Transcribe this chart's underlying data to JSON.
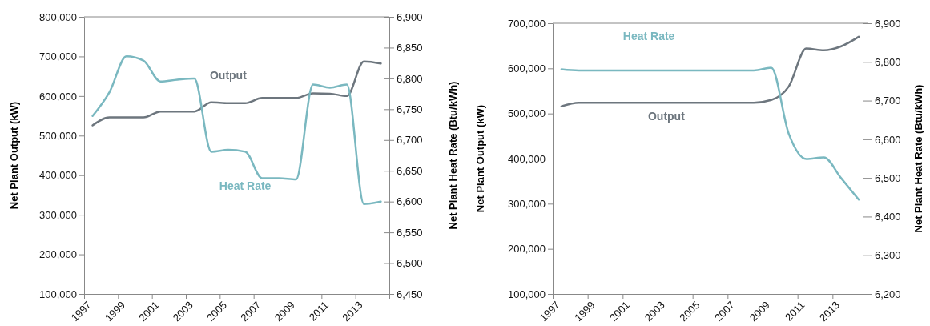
{
  "chart_data": [
    {
      "type": "line",
      "ylabel": "Net Plant Output (kW)",
      "y2label": "Net Plant Heat Rate (Btu/kWh)",
      "xlim": [
        1997,
        2015
      ],
      "xticks": [
        1997,
        1999,
        2001,
        2003,
        2005,
        2007,
        2009,
        2011,
        2013
      ],
      "ylim": [
        100000,
        800000
      ],
      "yticks": [
        {
          "value": 100000,
          "label": "100,000"
        },
        {
          "value": 200000,
          "label": "200,000"
        },
        {
          "value": 300000,
          "label": "300,000"
        },
        {
          "value": 400000,
          "label": "400,000"
        },
        {
          "value": 500000,
          "label": "500,000"
        },
        {
          "value": 600000,
          "label": "600,000"
        },
        {
          "value": 700000,
          "label": "700,000"
        },
        {
          "value": 800000,
          "label": "800,000"
        }
      ],
      "y2lim": [
        6450,
        6900
      ],
      "y2ticks": [
        {
          "value": 6450,
          "label": "6,450"
        },
        {
          "value": 6500,
          "label": "6,500"
        },
        {
          "value": 6550,
          "label": "6,550"
        },
        {
          "value": 6600,
          "label": "6,600"
        },
        {
          "value": 6650,
          "label": "6,650"
        },
        {
          "value": 6700,
          "label": "6,700"
        },
        {
          "value": 6750,
          "label": "6,750"
        },
        {
          "value": 6800,
          "label": "6,800"
        },
        {
          "value": 6850,
          "label": "6,850"
        },
        {
          "value": 6900,
          "label": "6,900"
        }
      ],
      "x": [
        1997.5,
        1998.5,
        1999.5,
        2000.5,
        2001.5,
        2002.5,
        2003.5,
        2004.5,
        2005.5,
        2006.5,
        2007.5,
        2008.5,
        2009.5,
        2010.5,
        2011.5,
        2012.5,
        2013.5,
        2014.5
      ],
      "grid": false,
      "marker": "none",
      "line_style": "solid",
      "series": [
        {
          "name": "Output",
          "color": "#6d767e",
          "values": [
            526000,
            546000,
            546000,
            546000,
            561000,
            561000,
            561000,
            584000,
            582000,
            582000,
            595000,
            595000,
            595000,
            607000,
            606000,
            600000,
            687000,
            682000
          ]
        },
        {
          "name": "Heat Rate",
          "color": "#7ab8c0",
          "axis": "y2",
          "values": [
            6739,
            6778,
            6836,
            6829,
            6795,
            6798,
            6800,
            6681,
            6684,
            6681,
            6638,
            6638,
            6636,
            6790,
            6785,
            6790,
            6596,
            6600
          ]
        }
      ]
    },
    {
      "type": "line",
      "ylabel": "Net Plant Output (kW)",
      "y2label": "Net Plant Heat Rate (Btu/kWh)",
      "xlim": [
        1997,
        2015
      ],
      "xticks": [
        1997,
        1999,
        2001,
        2003,
        2005,
        2007,
        2009,
        2011,
        2013
      ],
      "ylim": [
        100000,
        700000
      ],
      "yticks": [
        {
          "value": 100000,
          "label": "100,000"
        },
        {
          "value": 200000,
          "label": "200,000"
        },
        {
          "value": 300000,
          "label": "300,000"
        },
        {
          "value": 400000,
          "label": "400,000"
        },
        {
          "value": 500000,
          "label": "500,000"
        },
        {
          "value": 600000,
          "label": "600,000"
        },
        {
          "value": 700000,
          "label": "700,000"
        }
      ],
      "y2lim": [
        6200,
        6900
      ],
      "y2ticks": [
        {
          "value": 6200,
          "label": "6,200"
        },
        {
          "value": 6300,
          "label": "6,300"
        },
        {
          "value": 6400,
          "label": "6,400"
        },
        {
          "value": 6500,
          "label": "6,500"
        },
        {
          "value": 6600,
          "label": "6,600"
        },
        {
          "value": 6700,
          "label": "6,700"
        },
        {
          "value": 6800,
          "label": "6,800"
        },
        {
          "value": 6900,
          "label": "6,900"
        }
      ],
      "x": [
        1997.5,
        1998.5,
        1999.5,
        2000.5,
        2001.5,
        2002.5,
        2003.5,
        2004.5,
        2005.5,
        2006.5,
        2007.5,
        2008.5,
        2009.5,
        2010.5,
        2011.5,
        2012.5,
        2013.5,
        2014.5
      ],
      "grid": false,
      "marker": "none",
      "line_style": "solid",
      "series": [
        {
          "name": "Output",
          "color": "#6d767e",
          "values": [
            516000,
            524000,
            524000,
            524000,
            524000,
            524000,
            524000,
            524000,
            524000,
            524000,
            524000,
            524000,
            530000,
            560000,
            644000,
            640000,
            649000,
            670000
          ]
        },
        {
          "name": "Heat Rate",
          "color": "#7ab8c0",
          "axis": "y2",
          "values": [
            6781,
            6778,
            6778,
            6778,
            6778,
            6778,
            6778,
            6778,
            6778,
            6778,
            6778,
            6778,
            6785,
            6614,
            6549,
            6553,
            6499,
            6444
          ]
        }
      ]
    }
  ]
}
